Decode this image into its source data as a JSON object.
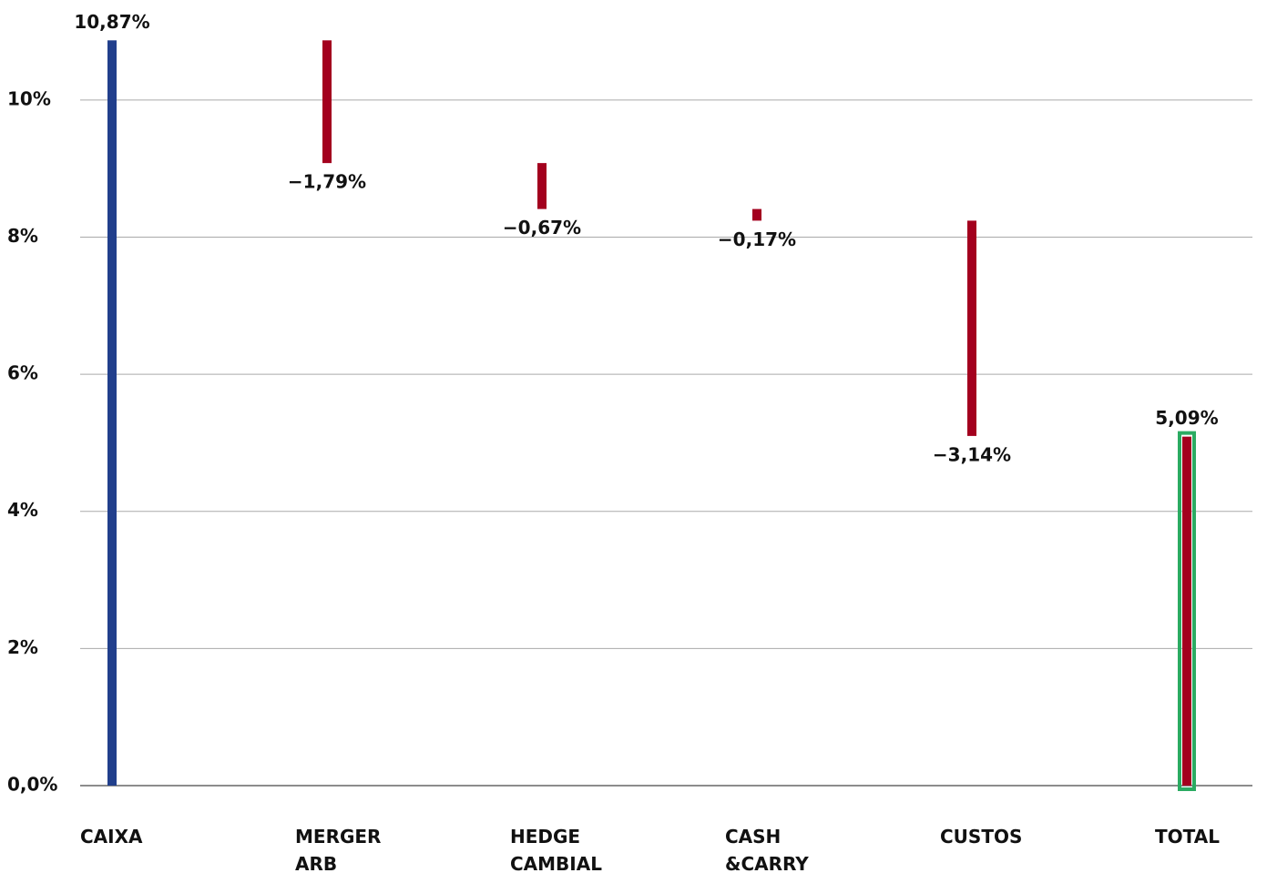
{
  "chart_data": {
    "type": "waterfall",
    "categories": [
      "CAIXA",
      "MERGER ARB",
      "HEDGE CAMBIAL",
      "CASH &CARRY",
      "CUSTOS",
      "TOTAL"
    ],
    "values": [
      10.87,
      -1.79,
      -0.67,
      -0.17,
      -3.14,
      5.09
    ],
    "value_labels": [
      "10,87%",
      "−1,79%",
      "−0,67%",
      "−0,17%",
      "−3,14%",
      "5,09%"
    ],
    "colors": {
      "start": "#213f8c",
      "decrease": "#a3001e",
      "total": "#a3001e",
      "total_border": "#2bab62"
    },
    "ylim": [
      0,
      11.1
    ],
    "yticks": [
      {
        "value": 0,
        "label": "0,0%"
      },
      {
        "value": 2,
        "label": "2%"
      },
      {
        "value": 4,
        "label": "4%"
      },
      {
        "value": 6,
        "label": "6%"
      },
      {
        "value": 8,
        "label": "8%"
      },
      {
        "value": 10,
        "label": "10%"
      }
    ],
    "grid": true
  }
}
